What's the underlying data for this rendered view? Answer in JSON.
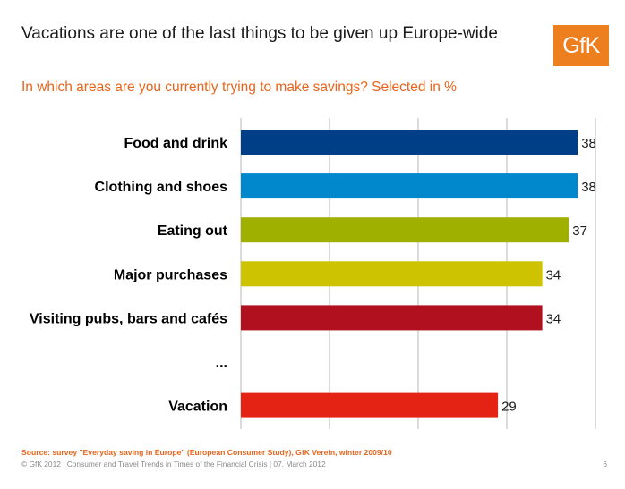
{
  "slide": {
    "title": "Vacations are one of the last things to be given up Europe-wide",
    "subtitle": "In which areas are you currently trying to make savings? Selected in %",
    "logo_text": "GfK",
    "source": "Source: survey \"Everyday saving in Europe\" (European Consumer Study), GfK Verein, winter 2009/10",
    "footer": "© GfK 2012 | Consumer and Travel Trends in Times of the Financial Crisis | 07. March 2012",
    "page_number": "6"
  },
  "chart_data": {
    "type": "bar",
    "orientation": "horizontal",
    "title": "",
    "xlabel": "",
    "ylabel": "",
    "xlim": [
      0,
      40
    ],
    "grid": true,
    "categories": [
      "Food and drink",
      "Clothing and shoes",
      "Eating out",
      "Major purchases",
      "Visiting pubs, bars and cafés",
      "...",
      "Vacation"
    ],
    "values": [
      38,
      38,
      37,
      34,
      34,
      null,
      29
    ],
    "colors": [
      "#003f87",
      "#0087cc",
      "#a0b000",
      "#cdc300",
      "#b1101f",
      null,
      "#e52315"
    ]
  }
}
